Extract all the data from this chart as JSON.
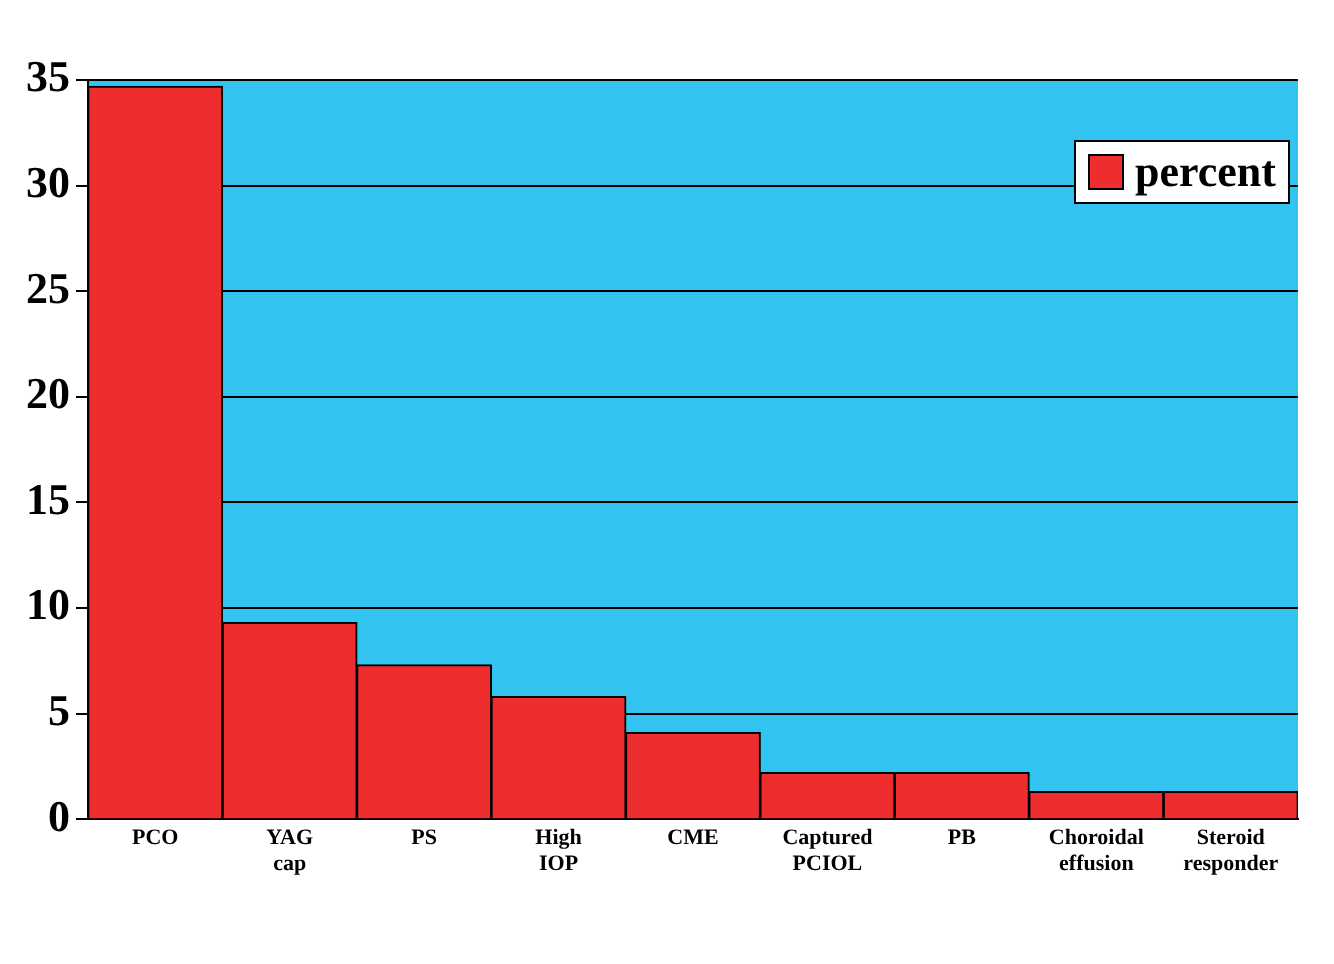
{
  "chart_data": {
    "type": "bar",
    "categories": [
      "PCO",
      "YAG cap",
      "PS",
      "High IOP",
      "CME",
      "Captured PCIOL",
      "PB",
      "Choroidal effusion",
      "Steroid responder"
    ],
    "series": [
      {
        "name": "percent",
        "color": "#ee2e2e",
        "values": [
          34.7,
          9.3,
          7.3,
          5.8,
          4.1,
          2.2,
          2.2,
          1.3,
          1.3
        ]
      }
    ],
    "ylim": [
      0,
      35
    ],
    "yticks": [
      0,
      5,
      10,
      15,
      20,
      25,
      30,
      35
    ],
    "grid": "y",
    "legend": "top right"
  }
}
